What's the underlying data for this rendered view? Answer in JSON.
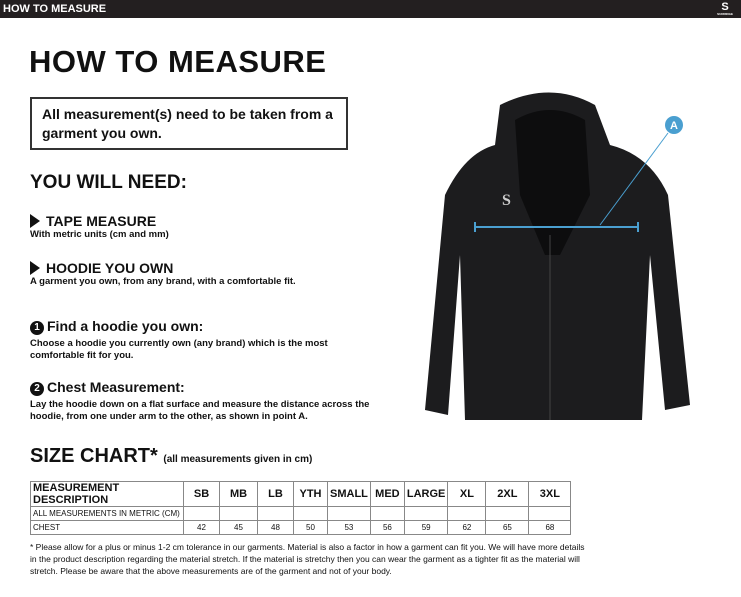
{
  "header": {
    "title": "HOW TO MEASURE",
    "logo": "S",
    "logo_sub": "SURRIDGE"
  },
  "title": "HOW TO MEASURE",
  "note": "All measurement(s) need to be taken from a garment you own.",
  "need_heading": "YOU WILL NEED:",
  "needs": [
    {
      "title": "TAPE MEASURE",
      "desc": "With metric units (cm and mm)"
    },
    {
      "title": "HOODIE YOU OWN",
      "desc": "A garment you own, from any brand, with a comfortable fit."
    }
  ],
  "steps": [
    {
      "num": "1",
      "title": "Find a hoodie you own:",
      "desc": "Choose a hoodie you currently own (any brand) which is the most comfortable fit for you."
    },
    {
      "num": "2",
      "title": "Chest Measurement:",
      "desc": "Lay the hoodie down on a flat surface and measure the distance across the hoodie, from one under arm to the other, as shown in point A."
    }
  ],
  "size_chart": {
    "title": "SIZE CHART*",
    "subtitle": "(all measurements given in cm)",
    "header": [
      "MEASUREMENT DESCRIPTION",
      "SB",
      "MB",
      "LB",
      "YTH",
      "SMALL",
      "MED",
      "LARGE",
      "XL",
      "2XL",
      "3XL"
    ],
    "metric_label": "ALL MEASUREMENTS IN METRIC (CM)",
    "rows": [
      {
        "label": "CHEST",
        "values": [
          "42",
          "45",
          "48",
          "50",
          "53",
          "56",
          "59",
          "62",
          "65",
          "68"
        ]
      }
    ]
  },
  "footnote": "* Please allow for a plus or minus 1-2 cm tolerance in our garments. Material is also a factor in how a garment can fit you. We will have more details in the product description regarding the material stretch.  If the material is stretchy then you can wear the garment as a tighter fit as the material will stretch.  Please be aware that the above measurements are of the garment and not of your body.",
  "diagram": {
    "point_label": "A",
    "accent": "#4a9fd0"
  }
}
